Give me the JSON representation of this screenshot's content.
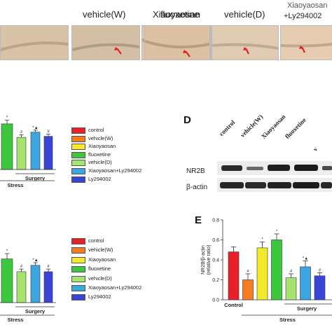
{
  "top_row": {
    "headers": [
      "vehicle(W)",
      "Xiaoyaosan",
      "fluoxetine",
      "vehicle(D)",
      "Xiaoyaosan",
      "+Ly294002"
    ]
  },
  "panel_d": {
    "letter": "D",
    "lanes": [
      "control",
      "vehicle(W)",
      "Xiaoyaosan",
      "fluoxetine",
      "v"
    ],
    "bands": [
      "NR2B",
      "β-actin"
    ]
  },
  "panel_e": {
    "letter": "E"
  },
  "legend_items": [
    {
      "label": "control",
      "color": "#e8202a"
    },
    {
      "label": "vehicle(W)",
      "color": "#f57c20"
    },
    {
      "label": "Xiaoyaosan",
      "color": "#f3ea2b"
    },
    {
      "label": "fluoxetine",
      "color": "#3cc83c"
    },
    {
      "label": "vehicle(D)",
      "color": "#a6e36f"
    },
    {
      "label": "Xiaoyaosan+Ly294002",
      "color": "#3da6e0"
    },
    {
      "label": "Ly294002",
      "color": "#3a44d8"
    }
  ],
  "chart_data": [
    {
      "type": "bar",
      "categories": [
        "Xiaoyaosan",
        "fluoxetine",
        "vehicle(D)",
        "Xiaoyaosan+Ly294002",
        "Ly294002"
      ],
      "values": [
        0.88,
        0.62,
        0.72,
        0.64,
        0.52
      ],
      "errors": [
        0.07,
        0.05,
        0.04,
        0.04,
        0.04
      ],
      "annotations": [
        "*",
        "#",
        "*▲",
        "#",
        ""
      ],
      "colors": [
        "#3cc83c",
        "#a6e36f",
        "#3da6e0",
        "#3a44d8",
        "#3a44d8"
      ],
      "group_labels": [
        "Stress",
        "Surgery"
      ],
      "ylim": [
        0,
        1
      ]
    },
    {
      "type": "bar",
      "categories": [
        "Xiaoyaosan",
        "fluoxetine",
        "vehicle(D)",
        "Xiaoyaosan+Ly294002",
        "Ly294002"
      ],
      "values": [
        0.82,
        0.58,
        0.7,
        0.58,
        0.5
      ],
      "errors": [
        0.1,
        0.05,
        0.05,
        0.05,
        0.04
      ],
      "annotations": [
        "*",
        "#",
        "*▲",
        "#",
        ""
      ],
      "colors": [
        "#3cc83c",
        "#a6e36f",
        "#3da6e0",
        "#3a44d8",
        "#3a44d8"
      ],
      "group_labels": [
        "Stress",
        "Surgery"
      ],
      "ylim": [
        0,
        1
      ]
    },
    {
      "type": "bar",
      "categories": [
        "Control",
        "vehicle(W)",
        "Xiaoyaosan",
        "fluoxetine",
        "vehicle(D)",
        "Xiaoyaosan+Ly294002",
        "Ly294002"
      ],
      "values": [
        0.48,
        0.2,
        0.52,
        0.6,
        0.22,
        0.33,
        0.24
      ],
      "errors": [
        0.05,
        0.06,
        0.06,
        0.06,
        0.04,
        0.06,
        0.03
      ],
      "annotations": [
        "",
        "#",
        "*",
        "*",
        "#",
        "*▲",
        "#"
      ],
      "colors": [
        "#e8202a",
        "#f57c20",
        "#f3ea2b",
        "#3cc83c",
        "#a6e36f",
        "#3da6e0",
        "#3a44d8"
      ],
      "ylabel": "NR2B/β-actin\n(relative ratio)",
      "yticks": [
        "0.0",
        "0.2",
        "0.4",
        "0.6",
        "0.8"
      ],
      "ylim": [
        0,
        0.8
      ],
      "xlabel_first": "Control",
      "group_labels": [
        "Stress",
        "Surgery"
      ]
    }
  ]
}
